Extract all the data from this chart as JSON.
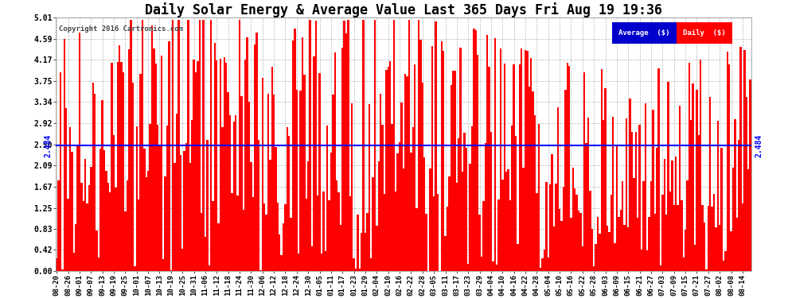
{
  "title": "Daily Solar Energy & Average Value Last 365 Days Fri Aug 19 19:36",
  "copyright": "Copyright 2016 Cartronics.com",
  "average_value": 2.484,
  "ymax": 5.01,
  "yticks": [
    0.0,
    0.42,
    0.83,
    1.25,
    1.67,
    2.09,
    2.5,
    2.92,
    3.34,
    3.75,
    4.17,
    4.59,
    5.01
  ],
  "bar_color": "#ff0000",
  "avg_line_color": "#0000ff",
  "background_color": "#ffffff",
  "plot_bg_color": "#ffffff",
  "grid_color": "#888888",
  "title_fontsize": 12,
  "legend_avg_color": "#0000cd",
  "legend_daily_color": "#ff0000",
  "x_labels": [
    "08-20",
    "08-26",
    "09-01",
    "09-07",
    "09-13",
    "09-19",
    "09-25",
    "10-01",
    "10-07",
    "10-13",
    "10-19",
    "10-25",
    "10-31",
    "11-06",
    "11-12",
    "11-18",
    "11-24",
    "11-30",
    "12-06",
    "12-12",
    "12-18",
    "12-24",
    "12-30",
    "01-05",
    "01-11",
    "01-17",
    "01-23",
    "01-29",
    "02-04",
    "02-10",
    "02-16",
    "02-22",
    "02-28",
    "03-05",
    "03-11",
    "03-17",
    "03-23",
    "03-29",
    "04-04",
    "04-10",
    "04-16",
    "04-22",
    "04-28",
    "05-04",
    "05-10",
    "05-16",
    "05-22",
    "05-28",
    "06-03",
    "06-09",
    "06-15",
    "06-21",
    "06-27",
    "07-03",
    "07-09",
    "07-15",
    "07-21",
    "07-27",
    "08-02",
    "08-08",
    "08-14"
  ],
  "num_bars": 365,
  "seed": 42
}
